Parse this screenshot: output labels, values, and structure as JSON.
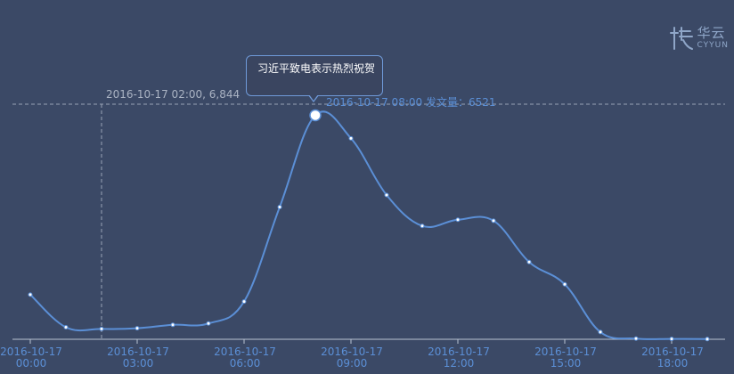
{
  "chart_data": {
    "type": "line",
    "x": [
      "00:00",
      "01:00",
      "02:00",
      "03:00",
      "04:00",
      "05:00",
      "06:00",
      "07:00",
      "08:00",
      "09:00",
      "10:00",
      "11:00",
      "12:00",
      "13:00",
      "14:00",
      "15:00",
      "16:00",
      "17:00",
      "18:00",
      "19:00"
    ],
    "series": [
      {
        "values": [
          1300,
          350,
          300,
          320,
          420,
          460,
          1100,
          3850,
          6521,
          5850,
          4200,
          3300,
          3480,
          3450,
          2250,
          1600,
          210,
          20,
          10,
          5
        ]
      }
    ],
    "x_tick_labels": [
      [
        "2016-10-17",
        "00:00"
      ],
      [
        "2016-10-17",
        "03:00"
      ],
      [
        "2016-10-17",
        "06:00"
      ],
      [
        "2016-10-17",
        "09:00"
      ],
      [
        "2016-10-17",
        "12:00"
      ],
      [
        "2016-10-17",
        "15:00"
      ],
      [
        "2016-10-17",
        "18:00"
      ]
    ],
    "ylim": [
      0,
      7000
    ],
    "grid": false,
    "line_color": "#5b8fd6",
    "crosshair": {
      "label": "2016-10-17 02:00, 6,844"
    },
    "point_label": "2016-10-17 08:00  发文量：6521",
    "highlight_index": 8
  },
  "tooltip": {
    "text": "习近平致电表示热烈祝贺"
  },
  "logo": {
    "cn": "华云",
    "en": "CYYUN"
  }
}
